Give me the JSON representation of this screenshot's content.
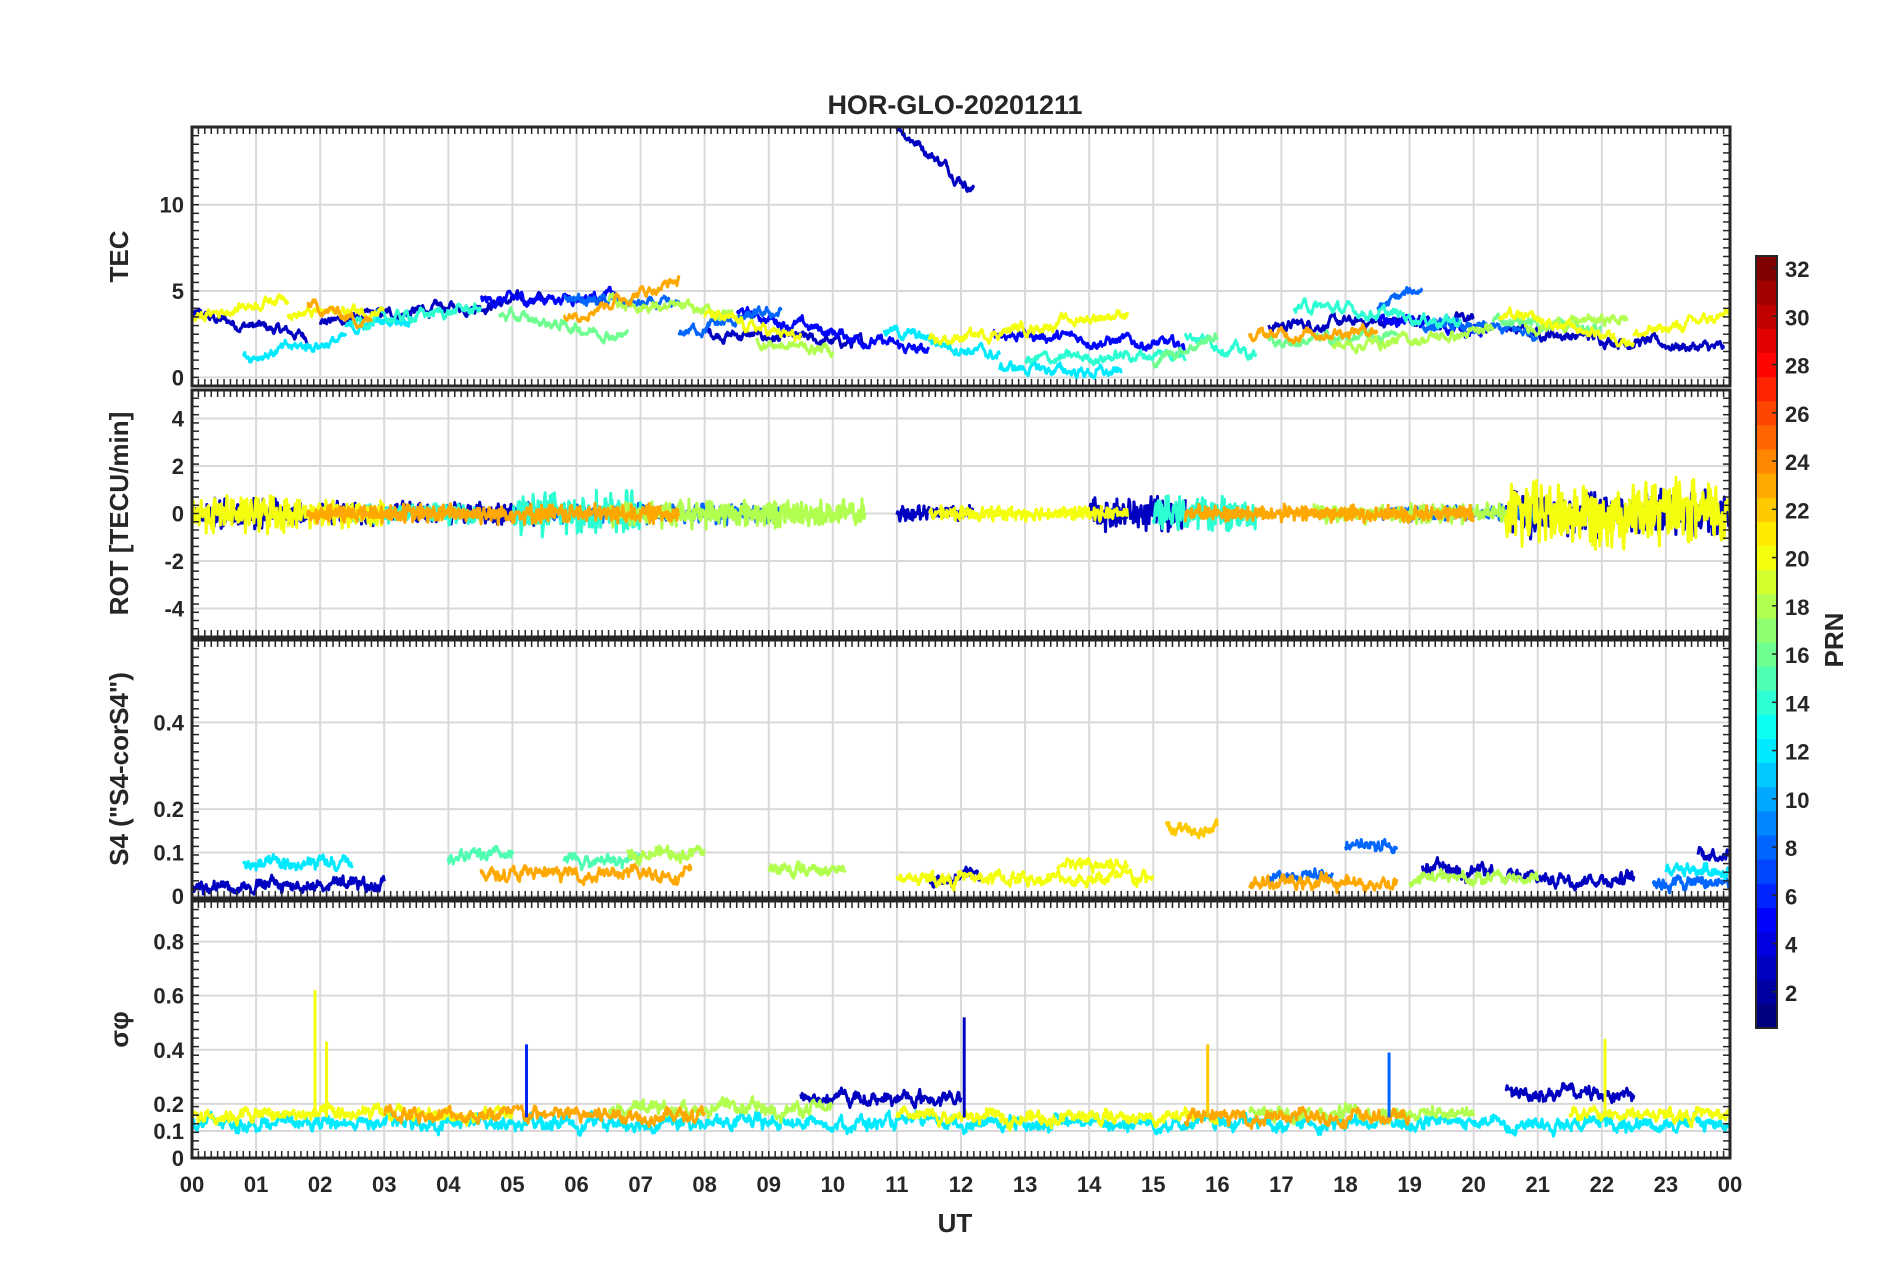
{
  "chart_data": {
    "type": "line",
    "title": "HOR-GLO-20201211",
    "xlabel": "UT",
    "x_range_hours": [
      0,
      24
    ],
    "x_tick_labels": [
      "00",
      "01",
      "02",
      "03",
      "04",
      "05",
      "06",
      "07",
      "08",
      "09",
      "10",
      "11",
      "12",
      "13",
      "14",
      "15",
      "16",
      "17",
      "18",
      "19",
      "20",
      "21",
      "22",
      "23",
      "00"
    ],
    "grid": true,
    "colorbar": {
      "label": "PRN",
      "range": [
        1,
        32
      ],
      "ticks": [
        2,
        4,
        6,
        8,
        10,
        12,
        14,
        16,
        18,
        20,
        22,
        24,
        26,
        28,
        30,
        32
      ],
      "colormap": "jet",
      "jet_colors": [
        "#00007f",
        "#0000ff",
        "#007fff",
        "#00ffff",
        "#7fff7f",
        "#ffff00",
        "#ff7f00",
        "#ff0000",
        "#7f0000"
      ]
    },
    "panels": [
      {
        "name": "TEC",
        "ylabel": "TEC",
        "ylim": [
          -0.5,
          14.5
        ],
        "yticks": [
          0,
          5,
          10
        ],
        "ytick_labels": [
          "0",
          "5",
          "10"
        ],
        "baseline": 3.0,
        "amplitude": 0.4,
        "segment_mode": "drift",
        "series": [
          {
            "name": "PRN 3",
            "prn": 3,
            "segments": [
              [
                0.0,
                1.8,
                3.6,
                2.4
              ],
              [
                2.0,
                5.5,
                3.2,
                4.6
              ],
              [
                8.0,
                10.5,
                2.6,
                1.9
              ],
              [
                11.0,
                12.2,
                14.6,
                10.9
              ],
              [
                16.8,
                20.0,
                3.0,
                3.4
              ],
              [
                20.5,
                23.9,
                2.8,
                1.6
              ]
            ]
          },
          {
            "name": "PRN 5",
            "prn": 5,
            "segments": [
              [
                4.5,
                6.6,
                4.4,
                4.8
              ],
              [
                8.5,
                11.5,
                3.8,
                1.4
              ],
              [
                12.5,
                15.5,
                2.6,
                1.8
              ],
              [
                18.5,
                20.3,
                3.4,
                2.6
              ]
            ]
          },
          {
            "name": "PRN 8",
            "prn": 8,
            "segments": [
              [
                5.8,
                7.6,
                4.6,
                4.0
              ],
              [
                7.6,
                9.2,
                2.6,
                3.8
              ],
              [
                18.5,
                19.2,
                4.0,
                5.2
              ],
              [
                19.2,
                21.0,
                3.0,
                2.6
              ]
            ]
          },
          {
            "name": "PRN 12",
            "prn": 12,
            "segments": [
              [
                0.8,
                2.4,
                1.2,
                2.2
              ],
              [
                2.4,
                3.5,
                2.8,
                3.6
              ],
              [
                10.8,
                12.6,
                2.8,
                1.2
              ],
              [
                12.6,
                14.5,
                0.6,
                0.2
              ]
            ]
          },
          {
            "name": "PRN 14",
            "prn": 14,
            "segments": [
              [
                2.5,
                4.5,
                3.2,
                4.0
              ],
              [
                13.0,
                15.5,
                1.0,
                1.4
              ],
              [
                15.5,
                16.6,
                2.6,
                1.2
              ],
              [
                17.2,
                19.8,
                4.2,
                3.2
              ]
            ]
          },
          {
            "name": "PRN 16",
            "prn": 16,
            "segments": [
              [
                4.8,
                6.8,
                3.6,
                2.4
              ],
              [
                15.0,
                16.0,
                1.0,
                2.4
              ],
              [
                16.8,
                18.8,
                2.0,
                2.4
              ],
              [
                20.3,
                22.0,
                3.4,
                2.8
              ]
            ]
          },
          {
            "name": "PRN 18",
            "prn": 18,
            "segments": [
              [
                6.5,
                8.5,
                4.4,
                3.6
              ],
              [
                8.8,
                10.0,
                2.0,
                1.6
              ],
              [
                17.8,
                20.3,
                1.8,
                2.6
              ],
              [
                20.8,
                22.4,
                3.0,
                3.4
              ]
            ]
          },
          {
            "name": "PRN 20",
            "prn": 20,
            "segments": [
              [
                0.0,
                1.5,
                3.4,
                4.8
              ],
              [
                1.5,
                3.0,
                3.6,
                4.0
              ],
              [
                8.0,
                9.5,
                3.6,
                2.2
              ],
              [
                11.5,
                14.6,
                2.0,
                3.8
              ],
              [
                20.4,
                22.5,
                3.6,
                2.2
              ],
              [
                22.5,
                24.0,
                2.4,
                3.6
              ]
            ]
          },
          {
            "name": "PRN 23",
            "prn": 23,
            "segments": [
              [
                1.8,
                2.8,
                4.2,
                3.2
              ],
              [
                5.8,
                7.6,
                3.6,
                5.6
              ],
              [
                16.5,
                18.5,
                2.4,
                2.8
              ]
            ]
          }
        ]
      },
      {
        "name": "ROT",
        "ylabel": "ROT [TECU/min]",
        "ylim": [
          -5.2,
          5.2
        ],
        "yticks": [
          -4,
          -2,
          0,
          2,
          4
        ],
        "ytick_labels": [
          "-4",
          "-2",
          "0",
          "2",
          "4"
        ],
        "baseline": 0.0,
        "amplitude": 0.45,
        "segment_mode": "noise",
        "series": [
          {
            "name": "PRN 3",
            "prn": 3,
            "segments": [
              [
                0.0,
                1.8,
                0.5
              ],
              [
                2.0,
                5.5,
                0.4
              ],
              [
                11.0,
                12.2,
                0.3
              ],
              [
                14.0,
                15.5,
                0.6
              ],
              [
                20.5,
                24.0,
                0.8
              ]
            ]
          },
          {
            "name": "PRN 8",
            "prn": 8,
            "segments": [
              [
                5.5,
                9.2,
                0.35
              ],
              [
                18.5,
                21.0,
                0.3
              ]
            ]
          },
          {
            "name": "PRN 14",
            "prn": 14,
            "segments": [
              [
                2.5,
                4.5,
                0.35
              ],
              [
                5.0,
                7.0,
                0.8
              ],
              [
                15.0,
                16.6,
                0.6
              ]
            ]
          },
          {
            "name": "PRN 18",
            "prn": 18,
            "segments": [
              [
                6.5,
                10.5,
                0.5
              ],
              [
                17.5,
                20.5,
                0.35
              ]
            ]
          },
          {
            "name": "PRN 20",
            "prn": 20,
            "segments": [
              [
                0.0,
                1.5,
                0.7
              ],
              [
                1.5,
                3.0,
                0.5
              ],
              [
                11.5,
                14.6,
                0.25
              ],
              [
                20.5,
                24.0,
                1.2
              ]
            ]
          },
          {
            "name": "PRN 23",
            "prn": 23,
            "segments": [
              [
                1.8,
                7.6,
                0.35
              ],
              [
                15.5,
                20.0,
                0.3
              ]
            ]
          }
        ]
      },
      {
        "name": "S4",
        "ylabel": "S4 (\"S4-corS4\")",
        "ylim": [
          -0.005,
          0.59
        ],
        "yticks": [
          0,
          0.1,
          0.2,
          0.4
        ],
        "ytick_labels": [
          "0",
          "0.1",
          "0.2",
          "0.4"
        ],
        "baseline": 0.025,
        "amplitude": 0.018,
        "segment_mode": "noise",
        "series": [
          {
            "name": "PRN 3",
            "prn": 3,
            "segments": [
              [
                0.0,
                3.0,
                0.025
              ],
              [
                11.5,
                12.3,
                0.04
              ],
              [
                19.2,
                20.3,
                0.06
              ],
              [
                20.5,
                22.5,
                0.04
              ],
              [
                23.5,
                24.0,
                0.1
              ]
            ]
          },
          {
            "name": "PRN 8",
            "prn": 8,
            "segments": [
              [
                16.8,
                17.8,
                0.05
              ],
              [
                18.0,
                18.8,
                0.12
              ],
              [
                22.8,
                24.0,
                0.03
              ]
            ]
          },
          {
            "name": "PRN 12",
            "prn": 12,
            "segments": [
              [
                0.8,
                2.5,
                0.07
              ],
              [
                23.0,
                24.0,
                0.06
              ]
            ]
          },
          {
            "name": "PRN 15",
            "prn": 15,
            "segments": [
              [
                4.0,
                5.0,
                0.09
              ],
              [
                5.8,
                7.0,
                0.08
              ]
            ]
          },
          {
            "name": "PRN 18",
            "prn": 18,
            "segments": [
              [
                6.8,
                8.0,
                0.1
              ],
              [
                9.0,
                10.2,
                0.06
              ],
              [
                19.0,
                21.0,
                0.04
              ]
            ]
          },
          {
            "name": "PRN 20",
            "prn": 20,
            "segments": [
              [
                11.0,
                15.0,
                0.04
              ],
              [
                13.5,
                14.6,
                0.07
              ]
            ]
          },
          {
            "name": "PRN 22",
            "prn": 22,
            "segments": [
              [
                15.2,
                16.0,
                0.16
              ]
            ]
          },
          {
            "name": "PRN 23",
            "prn": 23,
            "segments": [
              [
                4.5,
                7.8,
                0.05
              ],
              [
                16.5,
                18.8,
                0.03
              ]
            ]
          }
        ]
      },
      {
        "name": "SigmaPhi",
        "ylabel": "σφ",
        "ylim": [
          0,
          0.95
        ],
        "yticks": [
          0,
          0.1,
          0.2,
          0.4,
          0.6,
          0.8
        ],
        "ytick_labels": [
          "0",
          "0.1",
          "0.2",
          "0.4",
          "0.6",
          "0.8"
        ],
        "baseline": 0.15,
        "amplitude": 0.03,
        "segment_mode": "noise",
        "series": [
          {
            "name": "PRN 3",
            "prn": 3,
            "segments": [
              [
                9.5,
                12.0,
                0.22
              ],
              [
                20.5,
                22.5,
                0.24
              ]
            ]
          },
          {
            "name": "PRN 12",
            "prn": 12,
            "segments": [
              [
                0.0,
                24.0,
                0.13
              ]
            ]
          },
          {
            "name": "PRN 18",
            "prn": 18,
            "segments": [
              [
                6.5,
                10.0,
                0.18
              ],
              [
                16.5,
                20.0,
                0.17
              ]
            ]
          },
          {
            "name": "PRN 20",
            "prn": 20,
            "segments": [
              [
                0.0,
                5.0,
                0.16
              ],
              [
                11.0,
                16.0,
                0.15
              ],
              [
                21.5,
                24.0,
                0.16
              ]
            ]
          },
          {
            "name": "PRN 23",
            "prn": 23,
            "segments": [
              [
                3.0,
                8.0,
                0.16
              ],
              [
                15.5,
                19.0,
                0.15
              ]
            ]
          }
        ],
        "spikes": [
          {
            "t": 1.92,
            "value": 0.62,
            "prn": 20
          },
          {
            "t": 2.1,
            "value": 0.43,
            "prn": 20
          },
          {
            "t": 5.22,
            "value": 0.42,
            "prn": 6
          },
          {
            "t": 12.05,
            "value": 0.52,
            "prn": 3
          },
          {
            "t": 15.85,
            "value": 0.42,
            "prn": 22
          },
          {
            "t": 18.68,
            "value": 0.39,
            "prn": 8
          },
          {
            "t": 22.05,
            "value": 0.44,
            "prn": 20
          }
        ]
      }
    ]
  }
}
